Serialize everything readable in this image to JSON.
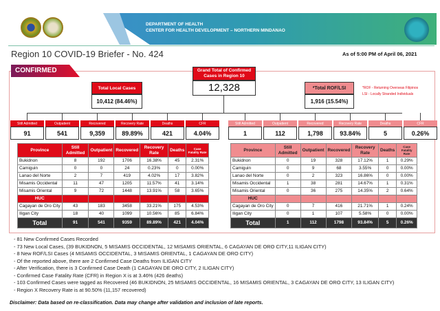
{
  "header": {
    "org_line1": "DEPARTMENT OF HEALTH",
    "org_line2": "CENTER FOR HEALTH DEVELOPMENT – NORTHERN MINDANAO",
    "title": "Region 10 COVID-19 Briefer - No. 424",
    "as_of": "As of 5:00 PM of April 06, 2021"
  },
  "colors": {
    "red": "#e00a18",
    "pink": "#f08c8f",
    "dark": "#333333"
  },
  "section_tag": "CONFIRMED",
  "grand_total": {
    "label": "Grand Total of Confirmed Cases in Region 10",
    "value": "12,328"
  },
  "local": {
    "label": "Total Local Cases",
    "value": "10,412 (84.46%)",
    "stats": [
      {
        "label": "Still Admitted",
        "value": "91"
      },
      {
        "label": "Outpatient",
        "value": "541"
      },
      {
        "label": "Recovered",
        "value": "9,359"
      },
      {
        "label": "Recovery Rate",
        "value": "89.89%"
      },
      {
        "label": "Deaths",
        "value": "421"
      },
      {
        "label": "CFR",
        "value": "4.04%"
      }
    ]
  },
  "rof": {
    "label": "*Total ROF/LSI",
    "value": "1,916 (15.54%)",
    "stats": [
      {
        "label": "Still Admitted",
        "value": "1"
      },
      {
        "label": "Outpatient",
        "value": "112"
      },
      {
        "label": "Recovered",
        "value": "1,798"
      },
      {
        "label": "Recovery Rate",
        "value": "93.84%"
      },
      {
        "label": "Deaths",
        "value": "5"
      },
      {
        "label": "CFR",
        "value": "0.26%"
      }
    ]
  },
  "legend": [
    "*ROF - Returning Overseas Filipinos",
    "LSI - Locally Stranded Individuals"
  ],
  "table_headers": [
    "Province",
    "Still Admitted",
    "Outpatient",
    "Recovered",
    "Recovery Rate",
    "Deaths",
    "Case Fatality Rate"
  ],
  "huc_label": "HUC",
  "local_table": {
    "provinces": [
      [
        "Bukidnon",
        "8",
        "192",
        "1706",
        "16.38%",
        "45",
        "2.31%"
      ],
      [
        "Camiguin",
        "0",
        "0",
        "24",
        "0.23%",
        "0",
        "0.00%"
      ],
      [
        "Lanao del Norte",
        "2",
        "7",
        "419",
        "4.02%",
        "17",
        "3.82%"
      ],
      [
        "Misamis Occidental",
        "11",
        "47",
        "1205",
        "11.57%",
        "41",
        "3.14%"
      ],
      [
        "Misamis Oriental",
        "9",
        "72",
        "1448",
        "13.91%",
        "58",
        "3.65%"
      ]
    ],
    "huc": [
      [
        "Cagayan de Oro City",
        "43",
        "183",
        "3458",
        "33.21%",
        "175",
        "4.53%"
      ],
      [
        "Iligan City",
        "18",
        "40",
        "1099",
        "10.56%",
        "85",
        "6.84%"
      ]
    ],
    "total": [
      "Total",
      "91",
      "541",
      "9359",
      "89.89%",
      "421",
      "4.04%"
    ]
  },
  "rof_table": {
    "provinces": [
      [
        "Bukidnon",
        "0",
        "19",
        "328",
        "17.12%",
        "1",
        "0.29%"
      ],
      [
        "Camiguin",
        "0",
        "9",
        "68",
        "3.55%",
        "0",
        "0.00%"
      ],
      [
        "Lanao del Norte",
        "0",
        "2",
        "323",
        "16.86%",
        "0",
        "0.00%"
      ],
      [
        "Misamis Occidental",
        "1",
        "38",
        "281",
        "14.67%",
        "1",
        "0.31%"
      ],
      [
        "Misamis Oriental",
        "0",
        "36",
        "275",
        "14.35%",
        "2",
        "0.64%"
      ]
    ],
    "huc": [
      [
        "Cagayan de Oro City",
        "0",
        "7",
        "416",
        "21.71%",
        "1",
        "0.24%"
      ],
      [
        "Iligan City",
        "0",
        "1",
        "107",
        "5.58%",
        "0",
        "0.00%"
      ]
    ],
    "total": [
      "Total",
      "1",
      "112",
      "1798",
      "93.84%",
      "5",
      "0.26%"
    ]
  },
  "bullets": [
    "- 81 New Confirmed Cases Recorded",
    "- 73 New Local Cases, (39 BUKIDNON, 5 MISAMIS OCCIDENTAL, 12 MISAMIS ORIENTAL, 6 CAGAYAN DE ORO CITY,11 ILIGAN CITY)",
    "- 8 New ROF/LSI Cases (4 MISAMIS OCCIDENTAL, 3  MISAMIS ORIENTAL, 1 CAGAYAN DE ORO CITY)",
    "- Of the reported above, there are 2 Confirmed Case Deaths from ILIGAN CITY",
    "- After Verification, there is 3 Confirmed Case Death (1 CAGAYAN DE ORO CITY, 2 ILIGAN CITY)",
    "- Confirmed Case Fatality Rate  (CFR) in Region X is at 3.46% (426  deaths)",
    "- 103 Confirmed Cases were tagged as Recovered (46 BUKIDNON, 25 MISAMIS OCCIDENTAL, 16 MISAMIS ORIENTAL, 3 CAGAYAN DE ORO CITY, 13 ILIGAN CITY)",
    "- Region X Recovery Rate is at 90.50% (11,157  recovered)"
  ],
  "disclaimer": "Disclaimer: Data based on re-classification. Data may change after validation and inclusion of late reports."
}
